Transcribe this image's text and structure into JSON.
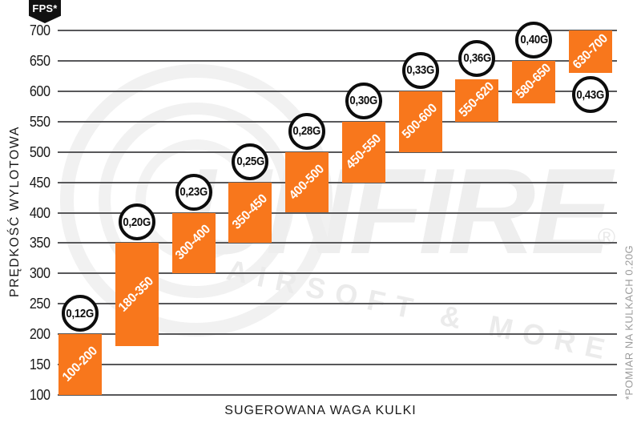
{
  "header": {
    "fps_badge": "FPS*"
  },
  "footnote": {
    "text": "*POMIAR NA KULKACH 0.20G"
  },
  "watermark": {
    "brand": "UNFIRE",
    "tagline": "AIRSOFT & MORE",
    "registered": "®"
  },
  "colors": {
    "bar_orange": "#f8771c",
    "gridline_gray": "#58585a",
    "circle_border_black": "#0d0d0d",
    "watermark_gray": "#eeeeee",
    "footnote_gray": "#9c9c9c"
  },
  "chart_data": {
    "type": "bar",
    "title": "",
    "xlabel": "SUGEROWANA WAGA KULKI",
    "ylabel": "PRĘDKOŚĆ WYLOTOWA",
    "ylim": [
      100,
      700
    ],
    "ytick_step": 50,
    "ytick_labels": [
      "700",
      "650",
      "600",
      "550",
      "500",
      "450",
      "400",
      "350",
      "300",
      "250",
      "200",
      "150",
      "100"
    ],
    "grid": "horizontal",
    "legend": "none",
    "categories": [
      "0,12G",
      "0,20G",
      "0,23G",
      "0,25G",
      "0,28G",
      "0,30G",
      "0,33G",
      "0,36G",
      "0,40G",
      "0,43G"
    ],
    "bars": [
      {
        "weight": "0,12G",
        "fps_min": 100,
        "fps_max": 200,
        "range_label": "100-200",
        "weight_badge_position": "above"
      },
      {
        "weight": "0,20G",
        "fps_min": 180,
        "fps_max": 350,
        "range_label": "180-350",
        "weight_badge_position": "above"
      },
      {
        "weight": "0,23G",
        "fps_min": 300,
        "fps_max": 400,
        "range_label": "300-400",
        "weight_badge_position": "above"
      },
      {
        "weight": "0,25G",
        "fps_min": 350,
        "fps_max": 450,
        "range_label": "350-450",
        "weight_badge_position": "above"
      },
      {
        "weight": "0,28G",
        "fps_min": 400,
        "fps_max": 500,
        "range_label": "400-500",
        "weight_badge_position": "above"
      },
      {
        "weight": "0,30G",
        "fps_min": 450,
        "fps_max": 550,
        "range_label": "450-550",
        "weight_badge_position": "above"
      },
      {
        "weight": "0,33G",
        "fps_min": 500,
        "fps_max": 600,
        "range_label": "500-600",
        "weight_badge_position": "above"
      },
      {
        "weight": "0,36G",
        "fps_min": 550,
        "fps_max": 620,
        "range_label": "550-620",
        "weight_badge_position": "above"
      },
      {
        "weight": "0,40G",
        "fps_min": 580,
        "fps_max": 650,
        "range_label": "580-650",
        "weight_badge_position": "above"
      },
      {
        "weight": "0,43G",
        "fps_min": 630,
        "fps_max": 700,
        "range_label": "630-700",
        "weight_badge_position": "below"
      }
    ]
  }
}
